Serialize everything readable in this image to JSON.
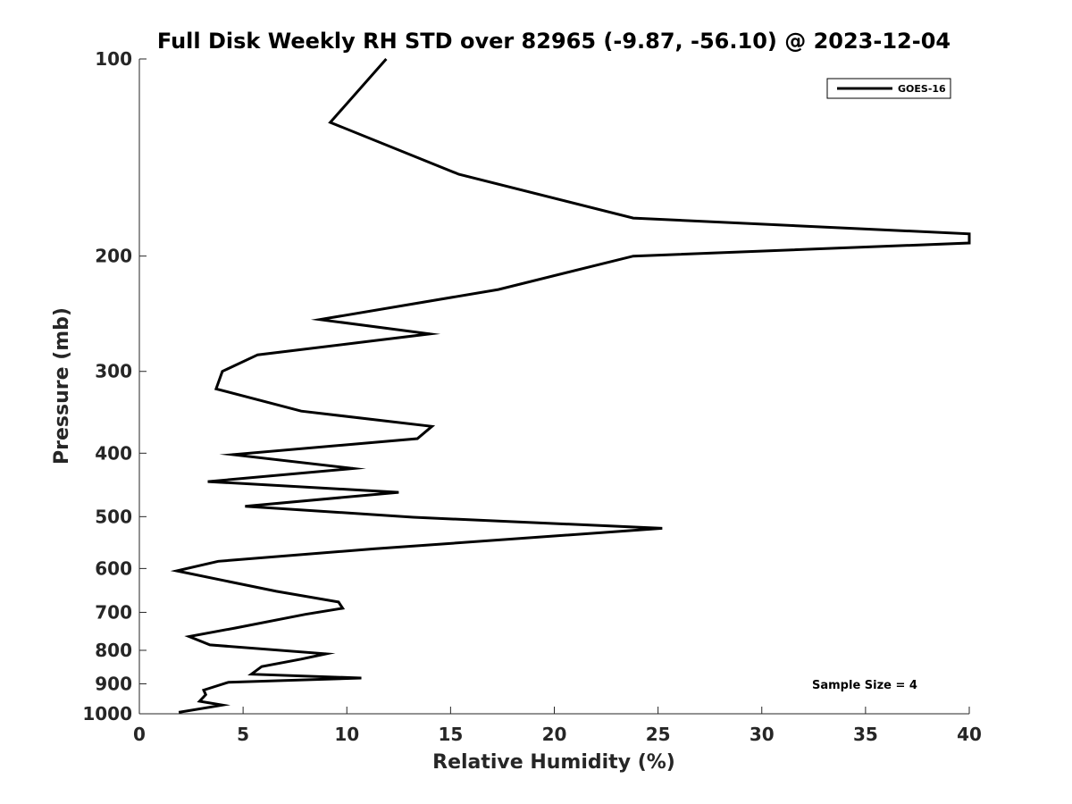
{
  "chart_data": {
    "type": "line",
    "title": "Full Disk Weekly RH STD over 82965 (-9.87, -56.10) @ 2023-12-04",
    "xlabel": "Relative Humidity (%)",
    "ylabel": "Pressure (mb)",
    "xlim": [
      0,
      40
    ],
    "ylim": [
      1000,
      100
    ],
    "yscale": "log",
    "y_reversed": true,
    "grid": false,
    "legend_position": "top-right",
    "x_ticks": [
      "0",
      "5",
      "10",
      "15",
      "20",
      "25",
      "30",
      "35",
      "40"
    ],
    "y_ticks": [
      "100",
      "200",
      "300",
      "400",
      "500",
      "600",
      "700",
      "800",
      "900",
      "1000"
    ],
    "annotation": "Sample Size = 4",
    "series": [
      {
        "name": "GOES-16",
        "color": "#000000",
        "x": [
          11.9,
          9.2,
          15.4,
          23.8,
          40.0,
          40.0,
          23.8,
          17.3,
          8.7,
          14.0,
          5.7,
          4.0,
          3.7,
          7.8,
          14.1,
          13.4,
          4.5,
          10.3,
          3.3,
          12.5,
          5.1,
          13.2,
          25.2,
          11.3,
          3.8,
          1.8,
          6.6,
          9.6,
          9.8,
          8.0,
          4.6,
          2.4,
          3.4,
          9.0,
          7.8,
          5.9,
          5.4,
          10.7,
          4.3,
          3.1,
          3.2,
          2.9,
          4.0,
          1.9
        ],
        "y": [
          100,
          125,
          150,
          175,
          185,
          191,
          200,
          225,
          250,
          263,
          283,
          300,
          319,
          345,
          364,
          380,
          402,
          422,
          442,
          459,
          482,
          501,
          521,
          560,
          585,
          605,
          650,
          675,
          690,
          705,
          740,
          762,
          785,
          810,
          825,
          847,
          870,
          882,
          895,
          920,
          935,
          957,
          970,
          995
        ]
      }
    ]
  }
}
